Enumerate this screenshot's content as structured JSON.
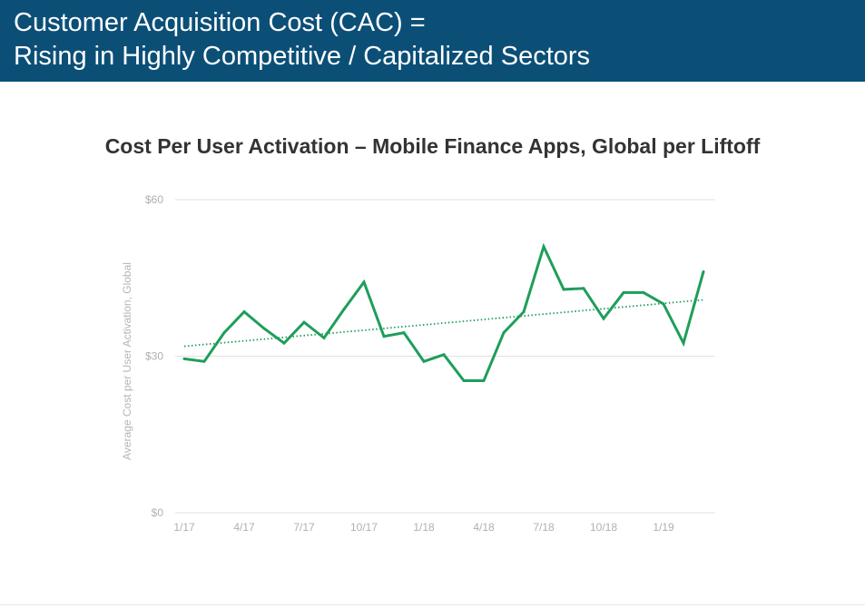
{
  "header": {
    "title_line1": "Customer Acquisition Cost (CAC) =",
    "title_line2": "Rising in Highly Competitive / Capitalized Sectors"
  },
  "colors": {
    "banner": "#0b4f77",
    "series": "#1e9e5a",
    "trend": "#1e9e5a",
    "grid": "#e2e2e2",
    "axis_text": "#b0b0b0"
  },
  "chart_data": {
    "type": "line",
    "title": "Cost Per User Activation – Mobile Finance Apps, Global per Liftoff",
    "xlabel": "",
    "ylabel": "Average Cost per User Activation, Global",
    "ylim": [
      0,
      60
    ],
    "y_ticks": [
      {
        "value": 0,
        "label": "$0"
      },
      {
        "value": 30,
        "label": "$30"
      },
      {
        "value": 60,
        "label": "$60"
      }
    ],
    "x": [
      "1/17",
      "2/17",
      "3/17",
      "4/17",
      "5/17",
      "6/17",
      "7/17",
      "8/17",
      "9/17",
      "10/17",
      "11/17",
      "12/17",
      "1/18",
      "2/18",
      "3/18",
      "4/18",
      "5/18",
      "6/18",
      "7/18",
      "8/18",
      "9/18",
      "10/18",
      "11/18",
      "12/18",
      "1/19",
      "2/19",
      "3/19"
    ],
    "x_tick_labels": [
      "1/17",
      "4/17",
      "7/17",
      "10/17",
      "1/18",
      "4/18",
      "7/18",
      "10/18",
      "1/19"
    ],
    "series": [
      {
        "values": [
          29.5,
          29.0,
          34.5,
          38.5,
          35.3,
          32.5,
          36.5,
          33.5,
          39.0,
          44.2,
          33.8,
          34.5,
          29.0,
          30.3,
          25.3,
          25.3,
          34.5,
          38.5,
          51.0,
          42.8,
          43.0,
          37.2,
          42.2,
          42.2,
          40.0,
          32.5,
          46.2
        ]
      }
    ],
    "trendline": {
      "style": "dotted",
      "start": 31.9,
      "end": 40.8
    },
    "grid": true,
    "legend": "none"
  }
}
